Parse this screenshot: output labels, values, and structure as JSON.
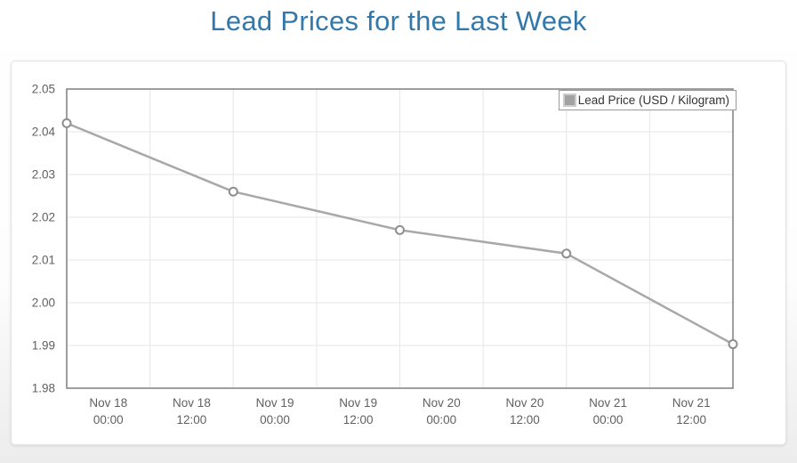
{
  "page": {
    "title": "Lead Prices for the Last Week"
  },
  "colors": {
    "title_text": "#3278aa",
    "axis_label_text": "#606060",
    "legend_text": "#333333",
    "plot_border": "#7f7f7f",
    "gridline": "#e6e6e6",
    "series_line": "#a8a8a8",
    "marker_fill": "#ffffff",
    "marker_stroke": "#8f8f8f",
    "panel_background": "#ffffff"
  },
  "chart_data": {
    "type": "line",
    "title": "Lead Prices for the Last Week",
    "legend": {
      "label": "Lead Price (USD / Kilogram)",
      "position": "top-right",
      "marker_shape": "square"
    },
    "xlabel": "",
    "ylabel": "",
    "grid": true,
    "ylim": [
      1.98,
      2.05
    ],
    "ytick_step": 0.01,
    "yticks": [
      {
        "value": 2.05,
        "label": "2.05"
      },
      {
        "value": 2.04,
        "label": "2.04"
      },
      {
        "value": 2.03,
        "label": "2.03"
      },
      {
        "value": 2.02,
        "label": "2.02"
      },
      {
        "value": 2.01,
        "label": "2.01"
      },
      {
        "value": 2.0,
        "label": "2.00"
      },
      {
        "value": 1.99,
        "label": "1.99"
      },
      {
        "value": 1.98,
        "label": "1.98"
      }
    ],
    "xticks": [
      {
        "date": "Nov 18",
        "time": "00:00"
      },
      {
        "date": "Nov 18",
        "time": "12:00"
      },
      {
        "date": "Nov 19",
        "time": "00:00"
      },
      {
        "date": "Nov 19",
        "time": "12:00"
      },
      {
        "date": "Nov 20",
        "time": "00:00"
      },
      {
        "date": "Nov 20",
        "time": "12:00"
      },
      {
        "date": "Nov 21",
        "time": "00:00"
      },
      {
        "date": "Nov 21",
        "time": "12:00"
      }
    ],
    "series": [
      {
        "name": "Lead Price (USD / Kilogram)",
        "color": "#a8a8a8",
        "marker": {
          "shape": "circle",
          "fill": "#ffffff",
          "stroke": "#8f8f8f"
        },
        "points": [
          {
            "x_gridline": 0,
            "value": 2.042
          },
          {
            "x_gridline": 2,
            "value": 2.026
          },
          {
            "x_gridline": 4,
            "value": 2.017
          },
          {
            "x_gridline": 6,
            "value": 2.0115
          },
          {
            "x_gridline": 8,
            "value": 1.9903
          }
        ]
      }
    ]
  }
}
